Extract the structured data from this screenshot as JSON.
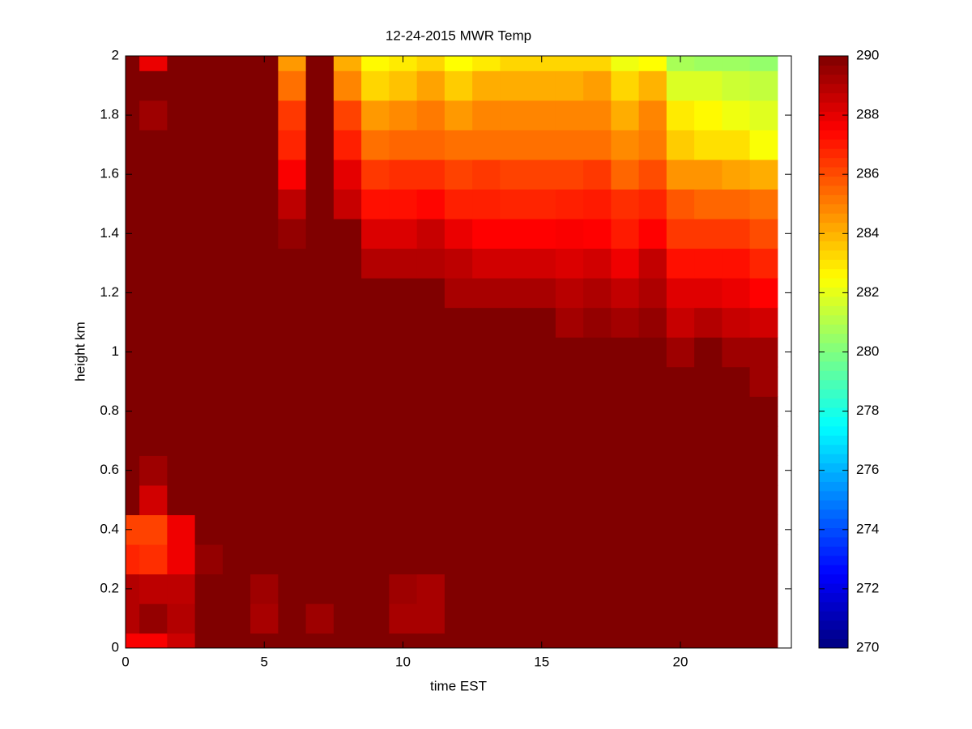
{
  "chart_data": {
    "type": "heatmap",
    "title": "12-24-2015 MWR Temp",
    "x_label": "time EST",
    "y_label": "height km",
    "colormap": "jet",
    "x": [
      0,
      1,
      2,
      3,
      4,
      5,
      6,
      7,
      8,
      9,
      10,
      11,
      12,
      13,
      14,
      15,
      16,
      17,
      18,
      19,
      20,
      21,
      22,
      23
    ],
    "y": [
      0,
      0.1,
      0.2,
      0.3,
      0.4,
      0.5,
      0.6,
      0.7,
      0.8,
      0.9,
      1,
      1.1,
      1.2,
      1.3,
      1.4,
      1.5,
      1.6,
      1.7,
      1.8,
      1.9,
      2
    ],
    "z": [
      [
        287.6,
        287.6,
        288.5,
        290,
        290,
        290,
        290,
        290,
        290,
        290,
        290,
        290,
        290,
        290,
        290,
        290,
        290,
        290,
        290,
        290,
        290,
        290,
        290,
        290
      ],
      [
        289,
        289.6,
        289,
        290,
        290,
        289.2,
        290,
        289.4,
        290,
        290,
        289.2,
        289.2,
        290,
        290,
        290,
        290,
        290,
        290,
        290,
        290,
        290,
        290,
        290,
        290
      ],
      [
        289,
        288.8,
        288.8,
        290,
        290,
        289.4,
        290,
        290,
        290,
        290,
        289.4,
        289.2,
        290,
        290,
        290,
        290,
        290,
        290,
        290,
        290,
        290,
        290,
        290,
        290
      ],
      [
        286.8,
        286.6,
        287.8,
        289.6,
        290,
        290,
        290,
        290,
        290,
        290,
        290,
        290,
        290,
        290,
        290,
        290,
        290,
        290,
        290,
        290,
        290,
        290,
        290,
        290
      ],
      [
        286.2,
        286.2,
        287.8,
        290,
        290,
        290,
        290,
        290,
        290,
        290,
        290,
        290,
        290,
        290,
        290,
        290,
        290,
        290,
        290,
        290,
        290,
        290,
        290,
        290
      ],
      [
        290,
        288.4,
        290,
        290,
        290,
        290,
        290,
        290,
        290,
        290,
        290,
        290,
        290,
        290,
        290,
        290,
        290,
        290,
        290,
        290,
        290,
        290,
        290,
        290
      ],
      [
        290,
        289.4,
        290,
        290,
        290,
        290,
        290,
        290,
        290,
        290,
        290,
        290,
        290,
        290,
        290,
        290,
        290,
        290,
        290,
        290,
        290,
        290,
        290,
        290
      ],
      [
        290,
        290,
        290,
        290,
        290,
        290,
        290,
        290,
        290,
        290,
        290,
        290,
        290,
        290,
        290,
        290,
        290,
        290,
        290,
        290,
        290,
        290,
        290,
        290
      ],
      [
        290,
        290,
        290,
        290,
        290,
        290,
        290,
        290,
        290,
        290,
        290,
        290,
        290,
        290,
        290,
        290,
        290,
        290,
        290,
        290,
        290,
        290,
        290,
        290
      ],
      [
        290,
        290,
        290,
        290,
        290,
        290,
        290,
        290,
        290,
        290,
        290,
        290,
        290,
        290,
        290,
        290,
        290,
        290,
        290,
        290,
        290,
        290,
        290,
        289.4
      ],
      [
        290,
        290,
        290,
        290,
        290,
        290,
        290,
        290,
        290,
        290,
        290,
        290,
        290,
        290,
        290,
        290,
        290,
        290,
        290,
        290,
        289.4,
        290,
        289.4,
        289.4
      ],
      [
        290,
        290,
        290,
        290,
        290,
        290,
        290,
        290,
        290,
        290,
        290,
        290,
        290,
        290,
        290,
        290,
        289.3,
        289.6,
        289.3,
        289.6,
        288.6,
        289,
        288.6,
        288.4
      ],
      [
        290,
        290,
        290,
        290,
        290,
        290,
        290,
        290,
        290,
        290,
        290,
        290,
        289.2,
        289.2,
        289.2,
        289.2,
        288.9,
        289.1,
        288.7,
        289.1,
        288.1,
        288.1,
        287.9,
        287.5
      ],
      [
        290,
        290,
        290,
        290,
        290,
        290,
        290,
        290,
        290,
        289,
        289,
        289,
        288.8,
        288.4,
        288.4,
        288.4,
        288.2,
        288.4,
        287.8,
        288.7,
        287.2,
        287.2,
        287.2,
        286.8
      ],
      [
        290,
        290,
        290,
        290,
        290,
        290,
        289.6,
        290,
        290,
        288.2,
        288.2,
        288.6,
        287.9,
        287.5,
        287.5,
        287.5,
        287.6,
        287.5,
        287,
        287.5,
        286.4,
        286.4,
        286.4,
        286
      ],
      [
        290,
        290,
        290,
        290,
        290,
        290,
        288.8,
        290,
        288.6,
        287.2,
        287.2,
        287.4,
        286.9,
        286.9,
        286.8,
        286.8,
        286.9,
        287,
        286.6,
        286.8,
        285.8,
        285.5,
        285.5,
        285.3
      ],
      [
        290,
        290,
        290,
        290,
        290,
        290,
        287.6,
        290,
        288,
        286.4,
        286.6,
        286.6,
        286.2,
        286.4,
        286.2,
        286.2,
        286.2,
        286.4,
        285.5,
        286,
        284.6,
        284.6,
        284.3,
        284.1
      ],
      [
        290,
        290,
        290,
        290,
        290,
        290,
        286.8,
        290,
        286.9,
        285.3,
        285.5,
        285.5,
        285.3,
        285.3,
        285.3,
        285.3,
        285.3,
        285.3,
        284.8,
        285.1,
        283.5,
        283.1,
        283.1,
        282.4
      ],
      [
        290,
        289.4,
        290,
        290,
        290,
        290,
        286.4,
        290,
        286.2,
        284.5,
        284.8,
        285.1,
        284.5,
        284.9,
        284.9,
        284.9,
        284.9,
        284.9,
        284.1,
        284.9,
        282.9,
        282.6,
        282.2,
        281.9
      ],
      [
        290,
        290,
        290,
        290,
        290,
        290,
        285.3,
        290,
        284.9,
        283.3,
        283.7,
        284.3,
        283.5,
        284.1,
        284.1,
        284.1,
        284.1,
        284.4,
        283.3,
        284,
        281.8,
        281.8,
        281.5,
        281.3
      ],
      [
        290,
        287.9,
        290,
        290,
        290,
        290,
        284.5,
        290,
        284.1,
        282.6,
        282.9,
        283.3,
        282.5,
        282.9,
        283.3,
        283.3,
        283.3,
        283.3,
        282.2,
        282.5,
        280.8,
        280.6,
        280.6,
        280.4
      ]
    ],
    "xlim": [
      0,
      24
    ],
    "ylim": [
      0,
      2
    ],
    "xticks": [
      0,
      5,
      10,
      15,
      20
    ],
    "yticks": [
      0,
      0.2,
      0.4,
      0.6,
      0.8,
      1,
      1.2,
      1.4,
      1.6,
      1.8,
      2
    ],
    "clim": [
      270,
      290
    ],
    "colorbar_ticks": [
      270,
      272,
      274,
      276,
      278,
      280,
      282,
      284,
      286,
      288,
      290
    ]
  }
}
